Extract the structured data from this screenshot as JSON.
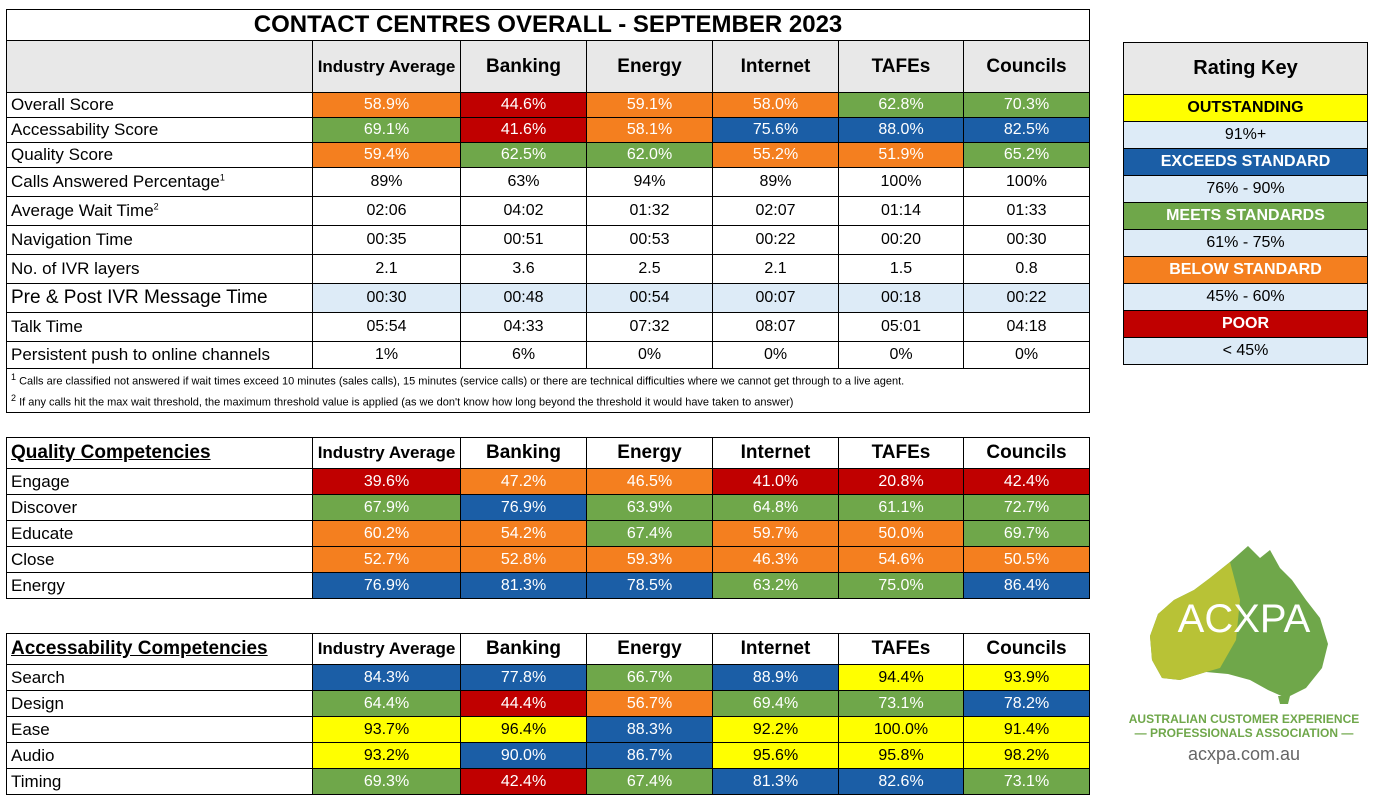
{
  "main": {
    "title": "CONTACT CENTRES OVERALL - SEPTEMBER 2023",
    "columns": [
      "Industry Average",
      "Banking",
      "Energy",
      "Internet",
      "TAFEs",
      "Councils"
    ],
    "rows": [
      {
        "label": "Overall Score",
        "sup": "",
        "values": [
          "58.9%",
          "44.6%",
          "59.1%",
          "58.0%",
          "62.8%",
          "70.3%"
        ]
      },
      {
        "label": "Accessability Score",
        "sup": "",
        "values": [
          "69.1%",
          "41.6%",
          "58.1%",
          "75.6%",
          "88.0%",
          "82.5%"
        ]
      },
      {
        "label": "Quality Score",
        "sup": "",
        "values": [
          "59.4%",
          "62.5%",
          "62.0%",
          "55.2%",
          "51.9%",
          "65.2%"
        ]
      },
      {
        "label": "Calls Answered Percentage",
        "sup": "1",
        "values": [
          "89%",
          "63%",
          "94%",
          "89%",
          "100%",
          "100%"
        ]
      },
      {
        "label": "Average Wait Time",
        "sup": "2",
        "values": [
          "02:06",
          "04:02",
          "01:32",
          "02:07",
          "01:14",
          "01:33"
        ]
      },
      {
        "label": "Navigation Time",
        "sup": "",
        "values": [
          "00:35",
          "00:51",
          "00:53",
          "00:22",
          "00:20",
          "00:30"
        ]
      },
      {
        "label": "No. of IVR layers",
        "sup": "",
        "values": [
          "2.1",
          "3.6",
          "2.5",
          "2.1",
          "1.5",
          "0.8"
        ]
      },
      {
        "label": "Pre & Post IVR Message Time",
        "sup": "",
        "values": [
          "00:30",
          "00:48",
          "00:54",
          "00:07",
          "00:18",
          "00:22"
        ]
      },
      {
        "label": "Talk Time",
        "sup": "",
        "values": [
          "05:54",
          "04:33",
          "07:32",
          "08:07",
          "05:01",
          "04:18"
        ]
      },
      {
        "label": "Persistent push to online channels",
        "sup": "",
        "values": [
          "1%",
          "6%",
          "0%",
          "0%",
          "0%",
          "0%"
        ]
      }
    ],
    "notes": [
      {
        "sup": "1",
        "text": " Calls are classified not answered if wait times exceed 10 minutes (sales calls), 15 minutes (service calls) or there are technical difficulties where we cannot get through to a live agent."
      },
      {
        "sup": "2",
        "text": " If any calls hit the max wait threshold, the maximum threshold value is applied (as we don't know how long beyond the threshold it would have taken to answer)"
      }
    ]
  },
  "quality": {
    "title": "Quality Competencies",
    "columns": [
      "Industry Average",
      "Banking",
      "Energy",
      "Internet",
      "TAFEs",
      "Councils"
    ],
    "rows": [
      {
        "label": "Engage",
        "values": [
          "39.6%",
          "47.2%",
          "46.5%",
          "41.0%",
          "20.8%",
          "42.4%"
        ]
      },
      {
        "label": "Discover",
        "values": [
          "67.9%",
          "76.9%",
          "63.9%",
          "64.8%",
          "61.1%",
          "72.7%"
        ]
      },
      {
        "label": "Educate",
        "values": [
          "60.2%",
          "54.2%",
          "67.4%",
          "59.7%",
          "50.0%",
          "69.7%"
        ]
      },
      {
        "label": "Close",
        "values": [
          "52.7%",
          "52.8%",
          "59.3%",
          "46.3%",
          "54.6%",
          "50.5%"
        ]
      },
      {
        "label": "Energy",
        "values": [
          "76.9%",
          "81.3%",
          "78.5%",
          "63.2%",
          "75.0%",
          "86.4%"
        ]
      }
    ]
  },
  "access": {
    "title": "Accessability Competencies",
    "columns": [
      "Industry Average",
      "Banking",
      "Energy",
      "Internet",
      "TAFEs",
      "Councils"
    ],
    "rows": [
      {
        "label": "Search",
        "values": [
          "84.3%",
          "77.8%",
          "66.7%",
          "88.9%",
          "94.4%",
          "93.9%"
        ]
      },
      {
        "label": "Design",
        "values": [
          "64.4%",
          "44.4%",
          "56.7%",
          "69.4%",
          "73.1%",
          "78.2%"
        ]
      },
      {
        "label": "Ease",
        "values": [
          "93.7%",
          "96.4%",
          "88.3%",
          "92.2%",
          "100.0%",
          "91.4%"
        ]
      },
      {
        "label": "Audio",
        "values": [
          "93.2%",
          "90.0%",
          "86.7%",
          "95.6%",
          "95.8%",
          "98.2%"
        ]
      },
      {
        "label": "Timing",
        "values": [
          "69.3%",
          "42.4%",
          "67.4%",
          "81.3%",
          "82.6%",
          "73.1%"
        ]
      }
    ]
  },
  "rating_key": {
    "title": "Rating Key",
    "items": [
      {
        "name": "OUTSTANDING",
        "range": "91%+",
        "color": "#FFFF00"
      },
      {
        "name": "EXCEEDS STANDARD",
        "range": "76% - 90%",
        "color": "#1B5EA6"
      },
      {
        "name": "MEETS STANDARDS",
        "range": "61% - 75%",
        "color": "#6FA74A"
      },
      {
        "name": "BELOW STANDARD",
        "range": "45% - 60%",
        "color": "#F47F1F"
      },
      {
        "name": "POOR",
        "range": "< 45%",
        "color": "#C00000"
      }
    ]
  },
  "logo": {
    "wordmark": "ACXPA",
    "line1": "AUSTRALIAN CUSTOMER EXPERIENCE",
    "line2": "— PROFESSIONALS ASSOCIATION —",
    "url": "acxpa.com.au"
  },
  "colors": {
    "outstanding": "#FFFF00",
    "exceeds": "#1B5EA6",
    "meets": "#6FA74A",
    "below": "#F47F1F",
    "poor": "#C00000",
    "shade": "#DDEBF7",
    "header_gray": "#E8E8E8"
  }
}
